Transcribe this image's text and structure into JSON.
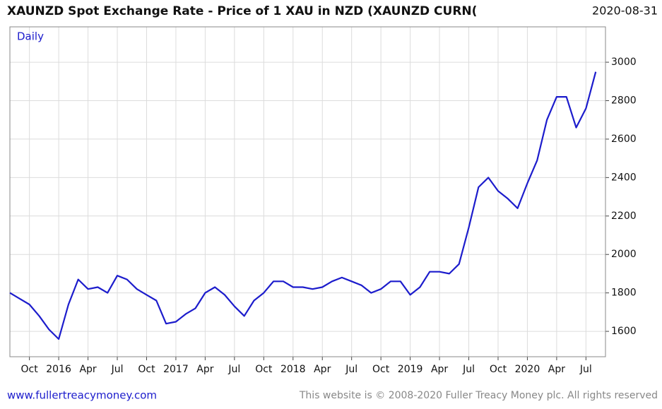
{
  "chart_data": {
    "type": "line",
    "title": "XAUNZD Spot Exchange Rate - Price of 1 XAU in NZD (XAUNZD CURN(",
    "date_label": "2020-08-31",
    "subtitle": "Daily",
    "x": [
      "2015-08",
      "2015-09",
      "2015-10",
      "2015-11",
      "2015-12",
      "2016-01",
      "2016-02",
      "2016-03",
      "2016-04",
      "2016-05",
      "2016-06",
      "2016-07",
      "2016-08",
      "2016-09",
      "2016-10",
      "2016-11",
      "2016-12",
      "2017-01",
      "2017-02",
      "2017-03",
      "2017-04",
      "2017-05",
      "2017-06",
      "2017-07",
      "2017-08",
      "2017-09",
      "2017-10",
      "2017-11",
      "2017-12",
      "2018-01",
      "2018-02",
      "2018-03",
      "2018-04",
      "2018-05",
      "2018-06",
      "2018-07",
      "2018-08",
      "2018-09",
      "2018-10",
      "2018-11",
      "2018-12",
      "2019-01",
      "2019-02",
      "2019-03",
      "2019-04",
      "2019-05",
      "2019-06",
      "2019-07",
      "2019-08",
      "2019-09",
      "2019-10",
      "2019-11",
      "2019-12",
      "2020-01",
      "2020-02",
      "2020-03",
      "2020-04",
      "2020-05",
      "2020-06",
      "2020-07",
      "2020-08"
    ],
    "series": [
      {
        "name": "XAUNZD",
        "color": "#1c1ccc",
        "values": [
          1800,
          1770,
          1740,
          1680,
          1610,
          1560,
          1740,
          1870,
          1820,
          1830,
          1800,
          1890,
          1870,
          1820,
          1790,
          1760,
          1640,
          1650,
          1690,
          1720,
          1800,
          1830,
          1790,
          1730,
          1680,
          1760,
          1800,
          1860,
          1860,
          1830,
          1830,
          1820,
          1830,
          1860,
          1880,
          1860,
          1840,
          1800,
          1820,
          1860,
          1860,
          1790,
          1830,
          1910,
          1910,
          1900,
          1950,
          2140,
          2350,
          2400,
          2330,
          2290,
          2240,
          2370,
          2490,
          2700,
          2820,
          2820,
          2660,
          2760,
          2950
        ]
      }
    ],
    "xlim": [
      "2015-08",
      "2020-09"
    ],
    "xticks": [
      {
        "value": "2015-10",
        "label": "Oct"
      },
      {
        "value": "2016-01",
        "label": "2016"
      },
      {
        "value": "2016-04",
        "label": "Apr"
      },
      {
        "value": "2016-07",
        "label": "Jul"
      },
      {
        "value": "2016-10",
        "label": "Oct"
      },
      {
        "value": "2017-01",
        "label": "2017"
      },
      {
        "value": "2017-04",
        "label": "Apr"
      },
      {
        "value": "2017-07",
        "label": "Jul"
      },
      {
        "value": "2017-10",
        "label": "Oct"
      },
      {
        "value": "2018-01",
        "label": "2018"
      },
      {
        "value": "2018-04",
        "label": "Apr"
      },
      {
        "value": "2018-07",
        "label": "Jul"
      },
      {
        "value": "2018-10",
        "label": "Oct"
      },
      {
        "value": "2019-01",
        "label": "2019"
      },
      {
        "value": "2019-04",
        "label": "Apr"
      },
      {
        "value": "2019-07",
        "label": "Jul"
      },
      {
        "value": "2019-10",
        "label": "Oct"
      },
      {
        "value": "2020-01",
        "label": "2020"
      },
      {
        "value": "2020-04",
        "label": "Apr"
      },
      {
        "value": "2020-07",
        "label": "Jul"
      }
    ],
    "ylim": [
      1468,
      3184
    ],
    "yticks": [
      1600,
      1800,
      2000,
      2200,
      2400,
      2600,
      2800,
      3000
    ],
    "grid": true
  },
  "footer": {
    "site": "www.fullertreacymoney.com",
    "copyright": "This website is © 2008-2020 Fuller Treacy Money plc. All rights reserved"
  }
}
